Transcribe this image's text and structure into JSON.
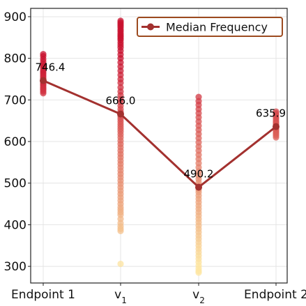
{
  "chart_data": {
    "type": "scatter",
    "title": "",
    "xlabel": "",
    "ylabel": "",
    "categories": [
      "Endpoint 1",
      "v",
      "v",
      "Endpoint 2"
    ],
    "category_subscripts": [
      "",
      "1",
      "2",
      ""
    ],
    "ylim": [
      260,
      920
    ],
    "yticks": [
      300,
      400,
      500,
      600,
      700,
      800,
      900
    ],
    "grid": true,
    "legend": {
      "position": "top-right",
      "entries": [
        "Median Frequency"
      ]
    },
    "colors": {
      "line": "#a3312f",
      "legend_border": "#9c4a1f",
      "scatter_high": "#c8102e",
      "scatter_low": "#fde6a0"
    },
    "series": [
      {
        "name": "Median Frequency",
        "style": "line-marker",
        "x": [
          "Endpoint 1",
          "v1",
          "v2",
          "Endpoint 2"
        ],
        "values": [
          746.4,
          666.0,
          490.2,
          635.9
        ],
        "labels": [
          "746.4",
          "666.0",
          "490.2",
          "635.9"
        ]
      }
    ],
    "scatter_points": [
      {
        "category": "Endpoint 1",
        "values": [
          810,
          805,
          798,
          792,
          786,
          781,
          778,
          772,
          768,
          764,
          760,
          756,
          752,
          749,
          746,
          743,
          740,
          737,
          734,
          730,
          727,
          724,
          720,
          716
        ]
      },
      {
        "category": "v1",
        "values": [
          890,
          886,
          882,
          878,
          874,
          869,
          865,
          860,
          856,
          852,
          848,
          844,
          838,
          832,
          826,
          818,
          809,
          800,
          790,
          780,
          770,
          760,
          750,
          741,
          730,
          720,
          711,
          702,
          694,
          686,
          678,
          671,
          666,
          660,
          654,
          648,
          642,
          636,
          630,
          624,
          617,
          610,
          602,
          594,
          586,
          578,
          570,
          562,
          554,
          546,
          538,
          530,
          522,
          514,
          506,
          498,
          490,
          482,
          474,
          466,
          458,
          450,
          442,
          436,
          430,
          424,
          414,
          404,
          396,
          390,
          385,
          306
        ]
      },
      {
        "category": "v2",
        "values": [
          707,
          697,
          688,
          678,
          668,
          658,
          648,
          638,
          628,
          618,
          608,
          598,
          588,
          578,
          568,
          558,
          548,
          538,
          528,
          518,
          510,
          502,
          495,
          490,
          484,
          478,
          470,
          462,
          454,
          446,
          438,
          430,
          422,
          414,
          406,
          398,
          390,
          382,
          374,
          366,
          358,
          350,
          342,
          334,
          326,
          318,
          310,
          302,
          295,
          289,
          285
        ]
      },
      {
        "category": "Endpoint 2",
        "values": [
          672,
          668,
          664,
          660,
          656,
          652,
          648,
          645,
          642,
          639,
          636,
          633,
          630,
          627,
          624,
          621,
          618,
          614,
          610
        ]
      }
    ]
  }
}
